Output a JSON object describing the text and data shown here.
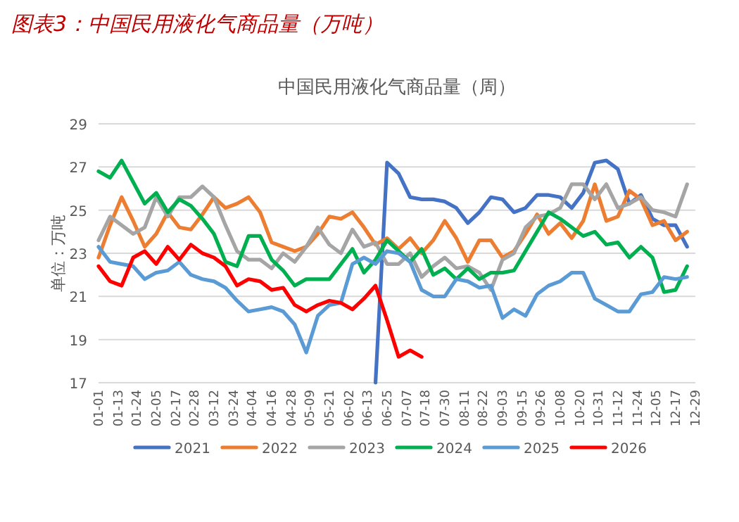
{
  "chart_data": {
    "type": "line",
    "title": "图表3：中国民用液化气商品量（万吨）",
    "subtitle": "中国民用液化气商品量（周）",
    "ylabel": "单位：万吨",
    "x": [
      "--01-01",
      "--01-08",
      "--01-15",
      "--01-22",
      "--01-29",
      "--02-05",
      "--02-12",
      "--02-19",
      "--02-26",
      "--03-05",
      "--03-12",
      "--03-19",
      "--03-26",
      "--04-02",
      "--04-09",
      "--04-16",
      "--04-23",
      "--04-30",
      "--05-07",
      "--05-14",
      "--05-21",
      "--05-28",
      "--06-04",
      "--06-11",
      "--06-18",
      "--06-25",
      "--07-02",
      "--07-09",
      "--07-16",
      "--07-23",
      "--07-30",
      "--08-06",
      "--08-13",
      "--08-20",
      "--08-27",
      "--09-03",
      "--09-10",
      "--09-17",
      "--09-24",
      "--10-01",
      "--10-08",
      "--10-15",
      "--10-22",
      "--10-29",
      "--11-05",
      "--11-12",
      "--11-19",
      "--11-26",
      "--12-03",
      "--12-10",
      "--12-17",
      "--12-24"
    ],
    "series": [
      {
        "name": "2021",
        "color": "#4472c4",
        "values": [
          null,
          null,
          null,
          null,
          null,
          null,
          null,
          null,
          null,
          null,
          null,
          null,
          null,
          null,
          null,
          null,
          null,
          null,
          null,
          null,
          null,
          null,
          null,
          null,
          17,
          27.2,
          26.7,
          25.6,
          25.5,
          25.5,
          25.4,
          25.1,
          24.4,
          24.9,
          25.6,
          25.5,
          24.9,
          25.1,
          25.7,
          25.7,
          25.6,
          25.1,
          25.8,
          27.2,
          27.3,
          26.9,
          25.3,
          25.7,
          24.6,
          24.3,
          24.3,
          23.3
        ]
      },
      {
        "name": "2022",
        "color": "#ed7d31",
        "values": [
          22.8,
          24.3,
          25.6,
          24.5,
          23.3,
          23.9,
          24.9,
          24.2,
          24.1,
          24.8,
          25.6,
          25.1,
          25.3,
          25.6,
          24.9,
          23.5,
          23.3,
          23.1,
          23.3,
          23.9,
          24.7,
          24.6,
          24.9,
          24.2,
          23.4,
          23.7,
          23.2,
          23.7,
          23.0,
          23.6,
          24.5,
          23.7,
          22.6,
          23.6,
          23.6,
          22.8,
          23.1,
          23.9,
          24.8,
          23.9,
          24.4,
          23.7,
          24.5,
          26.2,
          24.5,
          24.7,
          25.9,
          25.5,
          24.3,
          24.5,
          23.6,
          24.0
        ]
      },
      {
        "name": "2023",
        "color": "#a5a5a5",
        "values": [
          23.6,
          24.7,
          24.3,
          23.9,
          24.2,
          25.6,
          24.7,
          25.6,
          25.6,
          26.1,
          25.6,
          24.3,
          23.1,
          22.7,
          22.7,
          22.3,
          23.0,
          22.6,
          23.3,
          24.2,
          23.4,
          23.0,
          24.1,
          23.3,
          23.5,
          22.5,
          22.5,
          23.0,
          21.9,
          22.4,
          22.8,
          22.3,
          22.4,
          22.1,
          21.3,
          22.7,
          23.0,
          24.2,
          24.7,
          24.8,
          25.1,
          26.2,
          26.2,
          25.5,
          26.2,
          25.1,
          25.3,
          25.6,
          25.0,
          24.9,
          24.7,
          26.2
        ]
      },
      {
        "name": "2024",
        "color": "#00b050",
        "values": [
          26.8,
          26.5,
          27.3,
          26.3,
          25.3,
          25.8,
          24.9,
          25.5,
          25.2,
          24.6,
          23.9,
          22.6,
          22.4,
          23.8,
          23.8,
          22.7,
          22.2,
          21.5,
          21.8,
          21.8,
          21.8,
          22.5,
          23.2,
          22.1,
          22.7,
          23.6,
          23.1,
          22.6,
          23.2,
          22.0,
          22.3,
          21.8,
          22.3,
          21.8,
          22.1,
          22.1,
          22.2,
          23.1,
          24.0,
          24.9,
          24.6,
          24.2,
          23.8,
          24.0,
          23.4,
          23.5,
          22.8,
          23.3,
          22.8,
          21.2,
          21.3,
          22.4
        ]
      },
      {
        "name": "2025",
        "color": "#5b9bd5",
        "values": [
          23.3,
          22.6,
          22.5,
          22.4,
          21.8,
          22.1,
          22.2,
          22.6,
          22.0,
          21.8,
          21.7,
          21.4,
          20.8,
          20.3,
          20.4,
          20.5,
          20.3,
          19.7,
          18.4,
          20.1,
          20.6,
          20.7,
          22.5,
          22.8,
          22.5,
          23.1,
          23.0,
          22.6,
          21.3,
          21.0,
          21.0,
          21.8,
          21.7,
          21.4,
          21.5,
          20.0,
          20.4,
          20.1,
          21.1,
          21.5,
          21.7,
          22.1,
          22.1,
          20.9,
          20.6,
          20.3,
          20.3,
          21.1,
          21.2,
          21.9,
          21.8,
          21.9
        ]
      },
      {
        "name": "2026",
        "color": "#ff0000",
        "values": [
          22.4,
          21.7,
          21.5,
          22.8,
          23.1,
          22.5,
          23.3,
          22.7,
          23.4,
          23.0,
          22.8,
          22.4,
          21.5,
          21.8,
          21.7,
          21.3,
          21.4,
          20.6,
          20.3,
          20.6,
          20.8,
          20.7,
          20.4,
          20.9,
          21.5,
          19.9,
          18.2,
          18.5,
          18.2,
          null,
          null,
          null,
          null,
          null,
          null,
          null,
          null,
          null,
          null,
          null,
          null,
          null,
          null,
          null,
          null,
          null,
          null,
          null,
          null,
          null,
          null,
          null
        ]
      }
    ],
    "xlim": [
      "--01-01",
      "--12-29"
    ],
    "xticks": [
      {
        "value": "--01-01",
        "label": "01-01"
      },
      {
        "value": "--01-13",
        "label": "01-13"
      },
      {
        "value": "--01-24",
        "label": "01-24"
      },
      {
        "value": "--02-05",
        "label": "02-05"
      },
      {
        "value": "--02-17",
        "label": "02-17"
      },
      {
        "value": "--02-28",
        "label": "02-28"
      },
      {
        "value": "--03-12",
        "label": "03-12"
      },
      {
        "value": "--03-24",
        "label": "03-24"
      },
      {
        "value": "--04-04",
        "label": "04-04"
      },
      {
        "value": "--04-16",
        "label": "04-16"
      },
      {
        "value": "--04-28",
        "label": "04-28"
      },
      {
        "value": "--05-09",
        "label": "05-09"
      },
      {
        "value": "--05-21",
        "label": "05-21"
      },
      {
        "value": "--06-02",
        "label": "06-02"
      },
      {
        "value": "--06-13",
        "label": "06-13"
      },
      {
        "value": "--06-25",
        "label": "06-25"
      },
      {
        "value": "--07-07",
        "label": "07-07"
      },
      {
        "value": "--07-18",
        "label": "07-18"
      },
      {
        "value": "--07-30",
        "label": "07-30"
      },
      {
        "value": "--08-11",
        "label": "08-11"
      },
      {
        "value": "--08-22",
        "label": "08-22"
      },
      {
        "value": "--09-03",
        "label": "09-03"
      },
      {
        "value": "--09-15",
        "label": "09-15"
      },
      {
        "value": "--09-26",
        "label": "09-26"
      },
      {
        "value": "--10-08",
        "label": "10-08"
      },
      {
        "value": "--10-20",
        "label": "10-20"
      },
      {
        "value": "--10-31",
        "label": "10-31"
      },
      {
        "value": "--11-12",
        "label": "11-12"
      },
      {
        "value": "--11-24",
        "label": "11-24"
      },
      {
        "value": "--12-05",
        "label": "12-05"
      },
      {
        "value": "--12-17",
        "label": "12-17"
      },
      {
        "value": "--12-29",
        "label": "12-29"
      }
    ],
    "ylim": [
      17,
      29
    ],
    "yticks": [
      17,
      19,
      21,
      23,
      25,
      27,
      29
    ],
    "grid": "y",
    "legend": "bottom"
  }
}
